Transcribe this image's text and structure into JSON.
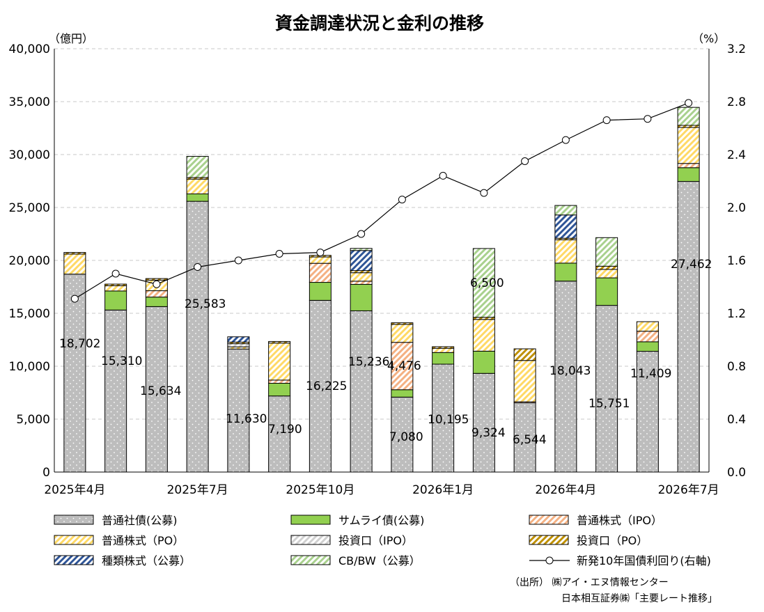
{
  "chart_data": {
    "type": "bar",
    "title": "資金調達状況と金利の推移",
    "left_unit": "（億円）",
    "right_unit": "（%）",
    "ylim": [
      0,
      40000
    ],
    "y2lim": [
      0.0,
      3.2
    ],
    "left_ticks": [
      "0",
      "5,000",
      "10,000",
      "15,000",
      "20,000",
      "25,000",
      "30,000",
      "35,000",
      "40,000"
    ],
    "right_ticks": [
      "0.0",
      "0.4",
      "0.8",
      "1.2",
      "1.6",
      "2.0",
      "2.4",
      "2.8",
      "3.2"
    ],
    "category_labels": [
      {
        "index": 0,
        "label": "2025年4月"
      },
      {
        "index": 3,
        "label": "2025年7月"
      },
      {
        "index": 6,
        "label": "2025年10月"
      },
      {
        "index": 9,
        "label": "2026年1月"
      },
      {
        "index": 12,
        "label": "2026年4月"
      },
      {
        "index": 15,
        "label": "2026年7月"
      }
    ],
    "grid": true,
    "legend_position": "bottom",
    "series": [
      {
        "name": "普通社債(公募)",
        "color": "#bdbdbd",
        "pattern": "dots",
        "values": [
          18702,
          15310,
          15634,
          25583,
          11630,
          7190,
          16225,
          15236,
          7080,
          10195,
          9324,
          6544,
          18043,
          15751,
          11409,
          27462
        ],
        "value_labels": [
          "18,702",
          "15,310",
          "15,634",
          "25,583",
          "11,630",
          "7,190",
          "16,225",
          "15,236",
          "7,080",
          "10,195",
          "9,324",
          "6,544",
          "18,043",
          "15,751",
          "11,409",
          "27,462"
        ]
      },
      {
        "name": "サムライ債(公募)",
        "color": "#92d050",
        "pattern": "solid",
        "values": [
          0,
          1800,
          900,
          700,
          0,
          1200,
          1700,
          2500,
          700,
          1100,
          2100,
          0,
          1700,
          2600,
          900,
          1300
        ]
      },
      {
        "name": "普通株式（IPO）",
        "color": "#f4b183",
        "pattern": "diag",
        "values": [
          0,
          0,
          600,
          0,
          0,
          300,
          1800,
          300,
          4476,
          0,
          0,
          100,
          0,
          0,
          1000,
          400
        ]
      },
      {
        "name": "普通株式（PO）",
        "color": "#ffd966",
        "pattern": "diag",
        "values": [
          1900,
          500,
          1000,
          1400,
          200,
          3500,
          600,
          800,
          1700,
          400,
          3000,
          3900,
          2200,
          800,
          900,
          3400
        ]
      },
      {
        "name": "投資口（IPO）",
        "color": "#d0d0d0",
        "pattern": "diag",
        "values": [
          0,
          0,
          0,
          0,
          300,
          0,
          0,
          0,
          0,
          0,
          0,
          0,
          0,
          0,
          0,
          0
        ]
      },
      {
        "name": "投資口（PO）",
        "color": "#bf9000",
        "pattern": "diag",
        "values": [
          150,
          150,
          150,
          150,
          150,
          150,
          150,
          200,
          150,
          150,
          200,
          1100,
          150,
          300,
          0,
          200
        ]
      },
      {
        "name": "種類株式（公募）",
        "color": "#2f5597",
        "pattern": "diag",
        "values": [
          0,
          0,
          0,
          0,
          500,
          0,
          0,
          1900,
          0,
          0,
          0,
          0,
          2200,
          0,
          0,
          0
        ]
      },
      {
        "name": "CB/BW（公募）",
        "color": "#a9d18e",
        "pattern": "diag",
        "values": [
          0,
          0,
          0,
          2000,
          0,
          0,
          0,
          200,
          0,
          0,
          6500,
          0,
          900,
          2700,
          0,
          1700
        ],
        "value_labels": [
          "",
          "",
          "",
          "",
          "",
          "",
          "",
          "",
          "",
          "",
          "6,500",
          "",
          "",
          "",
          "",
          ""
        ]
      },
      {
        "name": "新発10年国債利回り(右軸)",
        "color": "#000000",
        "type": "line",
        "axis": "right",
        "values": [
          1.31,
          1.5,
          1.42,
          1.55,
          1.6,
          1.65,
          1.66,
          1.8,
          2.06,
          2.24,
          2.11,
          2.35,
          2.51,
          2.66,
          2.67,
          2.79
        ]
      }
    ]
  },
  "source": {
    "line1": "（出所） ㈱アイ・エヌ情報センター",
    "line2": "日本相互証券㈱「主要レート推移」"
  }
}
